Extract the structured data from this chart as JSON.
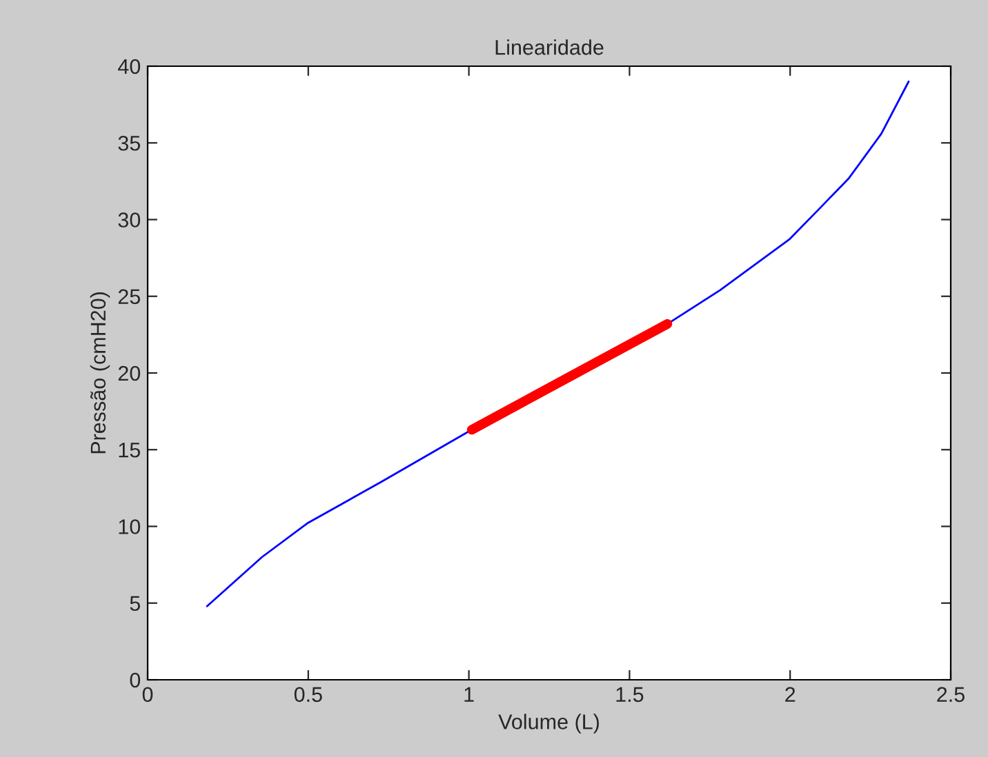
{
  "chart_data": {
    "type": "line",
    "title": "Linearidade",
    "xlabel": "Volume (L)",
    "ylabel": "Pressão (cmH20)",
    "series": [
      {
        "color": "#0000ff",
        "x": [
          0.185,
          0.356,
          0.497,
          0.727,
          1.009,
          1.618,
          1.782,
          1.997,
          2.086,
          2.183,
          2.284,
          2.369
        ],
        "values": [
          4.8,
          8.0,
          10.2,
          12.9,
          16.3,
          23.2,
          25.4,
          28.7,
          30.6,
          32.7,
          35.6,
          39.0
        ]
      },
      {
        "color": "#ff0000",
        "x": [
          1.009,
          1.3,
          1.618
        ],
        "values": [
          16.3,
          19.6,
          23.2
        ]
      }
    ],
    "xlim": [
      0,
      2.5
    ],
    "xticks": [
      0,
      0.5,
      1,
      1.5,
      2,
      2.5
    ],
    "ylim": [
      0,
      40
    ],
    "yticks": [
      0,
      5,
      10,
      15,
      20,
      25,
      30,
      35,
      40
    ],
    "grid": false,
    "legend": false
  }
}
